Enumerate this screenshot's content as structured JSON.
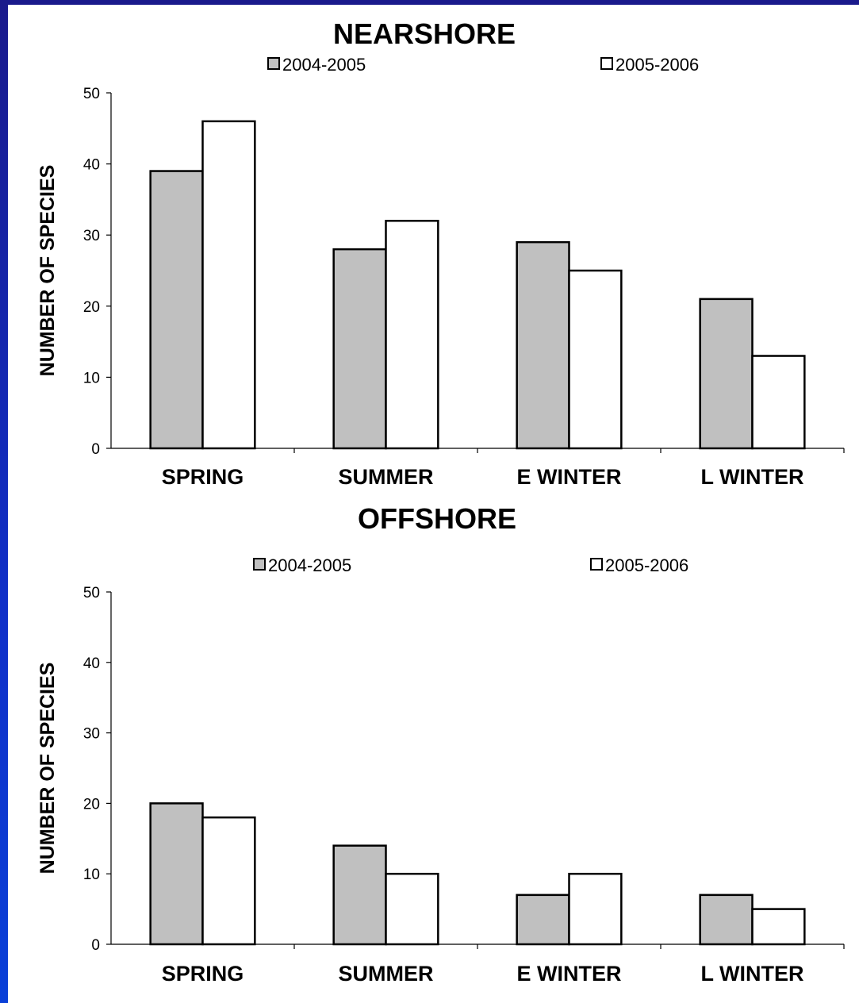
{
  "colors": {
    "series_1": "#c0c0c0",
    "series_2": "#ffffff",
    "outline": "#000000",
    "background": "#1a2fc0"
  },
  "chart_data": [
    {
      "type": "bar",
      "title": "NEARSHORE",
      "ylabel": "NUMBER OF SPECIES",
      "xlabel": "",
      "categories": [
        "SPRING",
        "SUMMER",
        "E WINTER",
        "L WINTER"
      ],
      "series": [
        {
          "name": "2004-2005",
          "values": [
            39,
            28,
            29,
            21
          ]
        },
        {
          "name": "2005-2006",
          "values": [
            46,
            32,
            25,
            13
          ]
        }
      ],
      "ylim": [
        0,
        50
      ],
      "yticks": [
        0,
        10,
        20,
        30,
        40,
        50
      ],
      "legend": "top",
      "grid": false
    },
    {
      "type": "bar",
      "title": "OFFSHORE",
      "ylabel": "NUMBER OF SPECIES",
      "xlabel": "",
      "categories": [
        "SPRING",
        "SUMMER",
        "E WINTER",
        "L WINTER"
      ],
      "series": [
        {
          "name": "2004-2005",
          "values": [
            20,
            14,
            7,
            7
          ]
        },
        {
          "name": "2005-2006",
          "values": [
            18,
            10,
            10,
            5
          ]
        }
      ],
      "ylim": [
        0,
        50
      ],
      "yticks": [
        0,
        10,
        20,
        30,
        40,
        50
      ],
      "legend": "top",
      "grid": false
    }
  ]
}
